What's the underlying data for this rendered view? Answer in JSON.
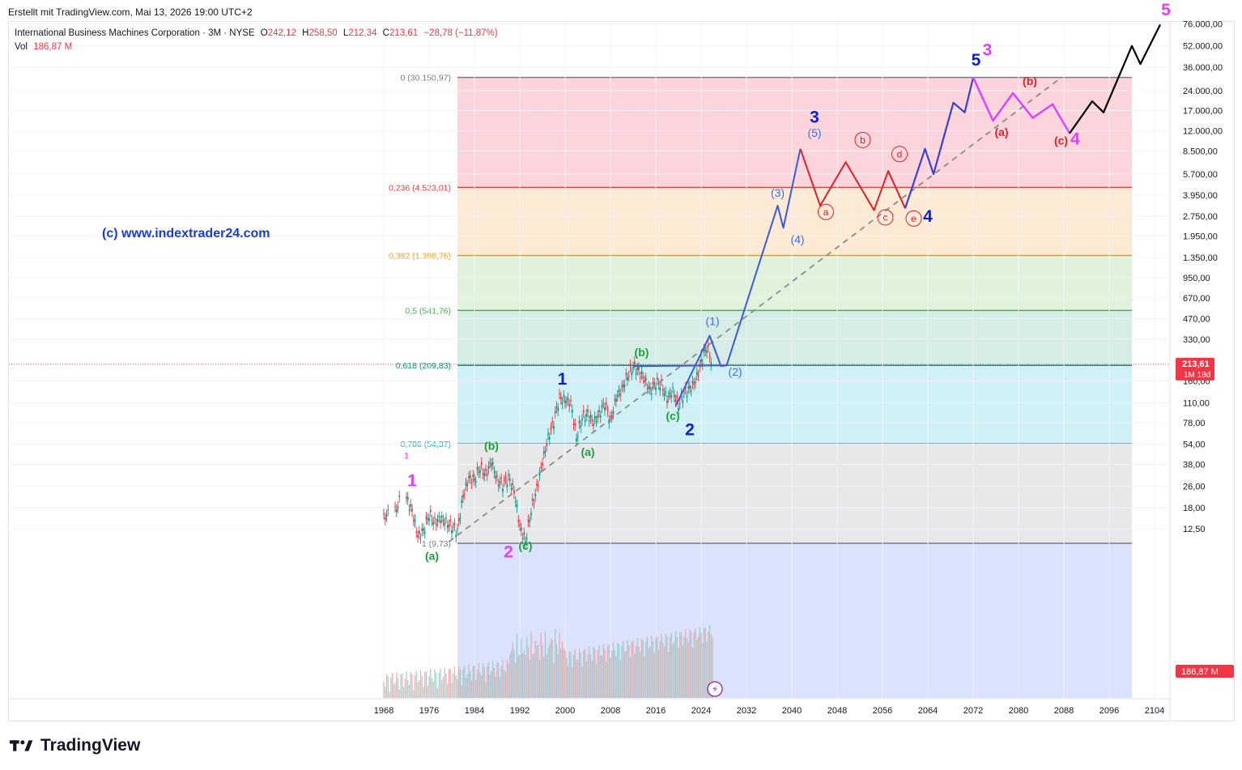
{
  "caption": "Erstellt mit TradingView.com, Mai 13, 2026 19:00 UTC+2",
  "legend": {
    "title": "International Business Machines Corporation · 3M · NYSE",
    "open_label": "O",
    "open": "242,12",
    "high_label": "H",
    "high": "258,50",
    "low_label": "L",
    "low": "212,34",
    "close_label": "C",
    "close": "213,61",
    "change": "−28,78 (−11,87%)",
    "vol_label": "Vol",
    "vol": "186,87 M"
  },
  "watermark": "(c) www.indextrader24.com",
  "footer_brand": "TradingView",
  "price_tag": {
    "price": "213,61",
    "countdown": "1M 18d"
  },
  "volume_tag": "186,87 M",
  "colors": {
    "fib0": "#787b86",
    "fib236": "#f23645",
    "fib382": "#ff9800",
    "fib50": "#4caf50",
    "fib618": "#089981",
    "fib786": "#00bcd4",
    "fib1": "#787b86",
    "wave_blue": "#0b1fd6",
    "wave_magenta": "#e040fb",
    "wave_green": "#1e9f3a",
    "wave_light_blue": "#3b6fe0",
    "wave_red": "#e0202a"
  },
  "chart_data": {
    "type": "line",
    "x_axis": {
      "min": 1966,
      "max": 2108,
      "ticks": [
        "1968",
        "1976",
        "1984",
        "1992",
        "2000",
        "2008",
        "2016",
        "2024",
        "2032",
        "2040",
        "2048",
        "2056",
        "2064",
        "2072",
        "2080",
        "2088",
        "2096",
        "2104"
      ]
    },
    "y_axis": {
      "scale": "log",
      "min": 6,
      "max": 80000,
      "ticks": [
        {
          "v": 76000,
          "label": "76.000,00"
        },
        {
          "v": 52000,
          "label": "52.000,00"
        },
        {
          "v": 36000,
          "label": "36.000,00"
        },
        {
          "v": 24000,
          "label": "24.000,00"
        },
        {
          "v": 17000,
          "label": "17.000,00"
        },
        {
          "v": 12000,
          "label": "12.000,00"
        },
        {
          "v": 8500,
          "label": "8.500,00"
        },
        {
          "v": 5700,
          "label": "5.700,00"
        },
        {
          "v": 3950,
          "label": "3.950,00"
        },
        {
          "v": 2750,
          "label": "2.750,00"
        },
        {
          "v": 1950,
          "label": "1.950,00"
        },
        {
          "v": 1350,
          "label": "1.350,00"
        },
        {
          "v": 950,
          "label": "950,00"
        },
        {
          "v": 670,
          "label": "670,00"
        },
        {
          "v": 470,
          "label": "470,00"
        },
        {
          "v": 330,
          "label": "330,00"
        },
        {
          "v": 160,
          "label": "160,00"
        },
        {
          "v": 110,
          "label": "110,00"
        },
        {
          "v": 78,
          "label": "78,00"
        },
        {
          "v": 54,
          "label": "54,00"
        },
        {
          "v": 38,
          "label": "38,00"
        },
        {
          "v": 26,
          "label": "26,00"
        },
        {
          "v": 18,
          "label": "18,00"
        },
        {
          "v": 12.5,
          "label": "12,50"
        }
      ]
    },
    "fib_levels": [
      {
        "ratio": "0",
        "label": "0 (30.150,97)",
        "value": 30150.97,
        "color": "#787b86",
        "fill": "#f7b3bd"
      },
      {
        "ratio": "0.236",
        "label": "0,236 (4.523,01)",
        "value": 4523.01,
        "color": "#f23645",
        "fill": "#fcd9b0"
      },
      {
        "ratio": "0.382",
        "label": "0,382 (1.398,76)",
        "value": 1398.76,
        "color": "#ff9800",
        "fill": "#c9e7bf"
      },
      {
        "ratio": "0.5",
        "label": "0,5 (541,76)",
        "value": 541.76,
        "color": "#4caf50",
        "fill": "#b4dfd0"
      },
      {
        "ratio": "0.618",
        "label": "0,618 (209,83)",
        "value": 209.83,
        "color": "#089981",
        "fill": "#a7e6ee"
      },
      {
        "ratio": "0.786",
        "label": "0,786 (54,37)",
        "value": 54.37,
        "color": "#00bcd4",
        "fill": "#d5d5d8"
      },
      {
        "ratio": "1",
        "label": "1 (9,73)",
        "value": 9.73,
        "color": "#787b86",
        "fill": "#bcccf7"
      }
    ],
    "fib_x_range": [
      1981,
      2088
    ],
    "last_price": 213.61,
    "price_history": [
      [
        1968,
        15
      ],
      [
        1970,
        17
      ],
      [
        1972,
        21
      ],
      [
        1973,
        17
      ],
      [
        1974,
        11
      ],
      [
        1975,
        12
      ],
      [
        1976,
        16
      ],
      [
        1977,
        14
      ],
      [
        1978,
        15
      ],
      [
        1979,
        14
      ],
      [
        1980,
        13
      ],
      [
        1981,
        12
      ],
      [
        1982,
        22
      ],
      [
        1983,
        30
      ],
      [
        1984,
        29
      ],
      [
        1985,
        36
      ],
      [
        1986,
        32
      ],
      [
        1987,
        40
      ],
      [
        1988,
        29
      ],
      [
        1989,
        27
      ],
      [
        1990,
        30
      ],
      [
        1991,
        24
      ],
      [
        1992,
        13
      ],
      [
        1993,
        10
      ],
      [
        1994,
        17
      ],
      [
        1995,
        25
      ],
      [
        1996,
        40
      ],
      [
        1997,
        60
      ],
      [
        1998,
        80
      ],
      [
        1999,
        120
      ],
      [
        2000,
        115
      ],
      [
        2001,
        110
      ],
      [
        2002,
        60
      ],
      [
        2003,
        85
      ],
      [
        2004,
        90
      ],
      [
        2005,
        78
      ],
      [
        2006,
        90
      ],
      [
        2007,
        110
      ],
      [
        2008,
        80
      ],
      [
        2009,
        120
      ],
      [
        2010,
        140
      ],
      [
        2011,
        175
      ],
      [
        2012,
        205
      ],
      [
        2013,
        190
      ],
      [
        2014,
        165
      ],
      [
        2015,
        135
      ],
      [
        2016,
        155
      ],
      [
        2017,
        150
      ],
      [
        2018,
        118
      ],
      [
        2019,
        135
      ],
      [
        2020,
        105
      ],
      [
        2021,
        130
      ],
      [
        2022,
        140
      ],
      [
        2023,
        160
      ],
      [
        2024,
        220
      ],
      [
        2025,
        290
      ],
      [
        2026,
        213
      ]
    ],
    "blue_path": [
      [
        2019.5,
        104
      ],
      [
        2025.5,
        350
      ],
      [
        2027.5,
        207
      ],
      [
        2028.5,
        210
      ],
      [
        2037.5,
        3300
      ],
      [
        2038.5,
        2250
      ],
      [
        2041.5,
        8800
      ]
    ],
    "blue_baseline": [
      [
        2012,
        207
      ],
      [
        2028.5,
        210
      ]
    ],
    "red_correction": [
      [
        2041.5,
        8800
      ],
      [
        2045,
        3300
      ],
      [
        2049.5,
        7000
      ],
      [
        2054.5,
        3050
      ],
      [
        2057,
        6000
      ],
      [
        2060,
        3150
      ]
    ],
    "blue_wave5": [
      [
        2060,
        3150
      ],
      [
        2063.5,
        8800
      ],
      [
        2065,
        5700
      ],
      [
        2068.5,
        19500
      ],
      [
        2070.5,
        16500
      ],
      [
        2072,
        30151
      ]
    ],
    "magenta_path": [
      [
        2072,
        30151
      ],
      [
        2075.5,
        14300
      ],
      [
        2079,
        23000
      ],
      [
        2082.5,
        15000
      ],
      [
        2086,
        19000
      ],
      [
        2089,
        11500
      ]
    ],
    "black_path": [
      [
        2089,
        11500
      ],
      [
        2093,
        20000
      ],
      [
        2095,
        16500
      ],
      [
        2100,
        52000
      ],
      [
        2101.5,
        38000
      ],
      [
        2105,
        75000
      ]
    ],
    "trendline": [
      [
        1979.5,
        10
      ],
      [
        2087.5,
        30000
      ]
    ],
    "volume_bars_note": "volume histogram pane",
    "annotations": [
      {
        "text": "1",
        "x": 1973,
        "y": 26,
        "color": "#e040fb",
        "size": 21
      },
      {
        "text": "1",
        "x": 1972,
        "y": 42,
        "color": "#e040fb",
        "size": 11,
        "bold": false
      },
      {
        "text": "(a)",
        "x": 1976.5,
        "y": 7.3,
        "color": "#1e9f3a",
        "size": 14
      },
      {
        "text": "(b)",
        "x": 1987,
        "y": 49,
        "color": "#1e9f3a",
        "size": 14
      },
      {
        "text": "2",
        "x": 1990,
        "y": 7.6,
        "color": "#e040fb",
        "size": 21
      },
      {
        "text": "(c)",
        "x": 1993,
        "y": 8.7,
        "color": "#1e9f3a",
        "size": 14
      },
      {
        "text": "1",
        "x": 1999.5,
        "y": 150,
        "color": "#0b1fd6",
        "size": 21
      },
      {
        "text": "(a)",
        "x": 2004,
        "y": 44,
        "color": "#1e9f3a",
        "size": 14
      },
      {
        "text": "(b)",
        "x": 2013.5,
        "y": 245,
        "color": "#1e9f3a",
        "size": 14
      },
      {
        "text": "(c)",
        "x": 2019,
        "y": 82,
        "color": "#1e9f3a",
        "size": 14
      },
      {
        "text": "2",
        "x": 2022,
        "y": 63,
        "color": "#0b1fd6",
        "size": 21
      },
      {
        "text": "(1)",
        "x": 2026,
        "y": 420,
        "color": "#3b6fe0",
        "size": 14,
        "bold": false
      },
      {
        "text": "(2)",
        "x": 2030,
        "y": 175,
        "color": "#3b6fe0",
        "size": 14,
        "bold": false
      },
      {
        "text": "(3)",
        "x": 2037.5,
        "y": 3850,
        "color": "#3b6fe0",
        "size": 14,
        "bold": false
      },
      {
        "text": "(4)",
        "x": 2041,
        "y": 1720,
        "color": "#3b6fe0",
        "size": 14,
        "bold": false
      },
      {
        "text": "(5)",
        "x": 2044,
        "y": 10800,
        "color": "#3b6fe0",
        "size": 14,
        "bold": false
      },
      {
        "text": "3",
        "x": 2044,
        "y": 13800,
        "color": "#0b1fd6",
        "size": 21
      },
      {
        "text": "a",
        "x": 2046,
        "y": 2800,
        "color": "#e0202a",
        "size": 12,
        "circle": true
      },
      {
        "text": "b",
        "x": 2052.5,
        "y": 9700,
        "color": "#e0202a",
        "size": 12,
        "circle": true
      },
      {
        "text": "c",
        "x": 2056.5,
        "y": 2550,
        "color": "#e0202a",
        "size": 12,
        "circle": true
      },
      {
        "text": "d",
        "x": 2059,
        "y": 7600,
        "color": "#e0202a",
        "size": 12,
        "circle": true
      },
      {
        "text": "e",
        "x": 2061.5,
        "y": 2500,
        "color": "#e0202a",
        "size": 12,
        "circle": true
      },
      {
        "text": "4",
        "x": 2064,
        "y": 2500,
        "color": "#0b1fd6",
        "size": 21
      },
      {
        "text": "5",
        "x": 2072.5,
        "y": 37000,
        "color": "#0b1fd6",
        "size": 21
      },
      {
        "text": "3",
        "x": 2074.5,
        "y": 44000,
        "color": "#e040fb",
        "size": 21
      },
      {
        "text": "(a)",
        "x": 2077,
        "y": 11000,
        "color": "#e0202a",
        "size": 14
      },
      {
        "text": "(b)",
        "x": 2082,
        "y": 26500,
        "color": "#e0202a",
        "size": 14
      },
      {
        "text": "(c)",
        "x": 2087.5,
        "y": 9500,
        "color": "#e0202a",
        "size": 14
      },
      {
        "text": "4",
        "x": 2090,
        "y": 9500,
        "color": "#e040fb",
        "size": 21
      },
      {
        "text": "5",
        "x": 2106,
        "y": 88000,
        "color": "#e040fb",
        "size": 21
      }
    ]
  }
}
